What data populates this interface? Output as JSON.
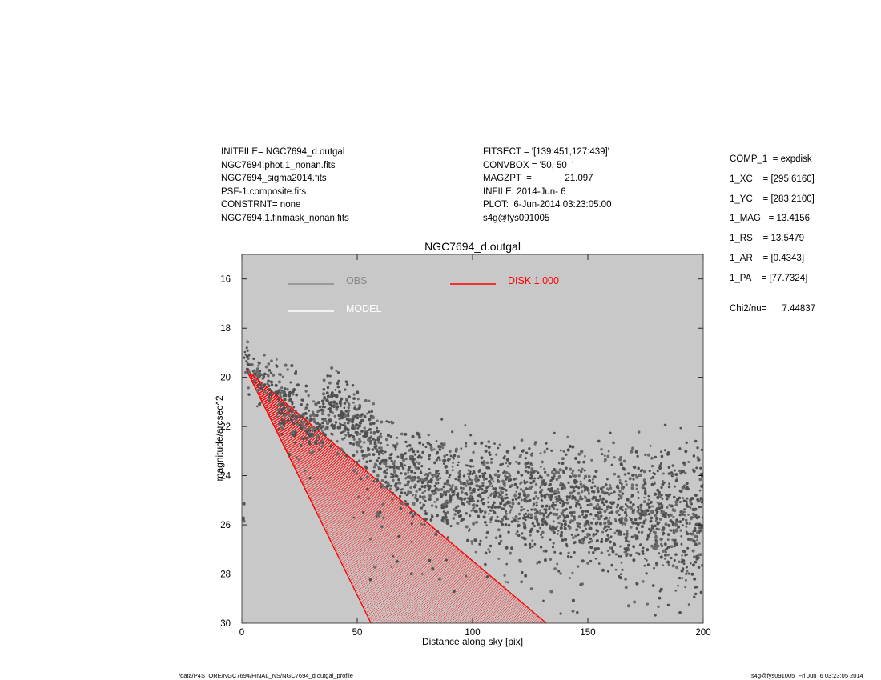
{
  "header_left": [
    "INITFILE= NGC7694_d.outgal",
    "NGC7694.phot.1_nonan.fits",
    "NGC7694_sigma2014.fits",
    "PSF-1.composite.fits",
    "CONSTRNT= none",
    "NGC7694.1.finmask_nonan.fits"
  ],
  "header_mid": [
    "FITSECT = '[139:451,127:439]'",
    "CONVBOX = '50, 50  '",
    "MAGZPT  =             21.097",
    "INFILE: 2014-Jun- 6",
    "PLOT:  6-Jun-2014 03:23:05.00",
    "s4g@fys091005"
  ],
  "components": [
    "COMP_1  = expdisk",
    "1_XC    = [295.6160]",
    "1_YC    = [283.2100]",
    "1_MAG   = 13.4156",
    "1_RS    = 13.5479",
    "1_AR    = [0.4343]",
    "1_PA    = [77.7324]"
  ],
  "chi2": "Chi2/nu=      7.44837",
  "footer_left": "/data/P4STORE/NGC7694/FINAL_NS/NGC7694_d.outgal_profile",
  "footer_right": "s4g@fys091005  Fri Jun  6 03:23:05 2014",
  "colors": {
    "plot_background": "#c8c8c8",
    "obs": "#505050",
    "obs_legend": "#8a8a8a",
    "model": "#ffffff",
    "disk": "#ff0000"
  },
  "chart_data": {
    "type": "scatter",
    "title": "NGC7694_d.outgal",
    "xlabel": "Distance along sky [pix]",
    "ylabel": "magnitude/arcsec^2",
    "xlim": [
      0,
      200
    ],
    "ylim": [
      30,
      15
    ],
    "y_inverted": true,
    "xticks": [
      0,
      50,
      100,
      150,
      200
    ],
    "yticks": [
      16,
      18,
      20,
      22,
      24,
      26,
      28,
      30
    ],
    "legend": [
      {
        "name": "OBS",
        "color": "#8a8a8a"
      },
      {
        "name": "MODEL",
        "color": "#ffffff"
      },
      {
        "name": "DISK  1.000",
        "color": "#ff0000"
      }
    ],
    "series": [
      {
        "name": "OBS",
        "kind": "points",
        "color": "#505050",
        "points": [
          [
            1,
            19.2
          ],
          [
            2,
            19.35
          ],
          [
            3,
            19.5
          ],
          [
            5,
            19.75
          ],
          [
            7,
            20.0
          ],
          [
            10,
            20.3
          ],
          [
            13,
            20.6
          ],
          [
            16,
            20.9
          ],
          [
            20,
            21.3
          ],
          [
            24,
            21.6
          ],
          [
            28,
            21.9
          ],
          [
            32,
            22.1
          ],
          [
            35,
            21.7
          ],
          [
            38,
            21.3
          ],
          [
            40,
            21.2
          ],
          [
            44,
            21.5
          ],
          [
            48,
            21.8
          ],
          [
            52,
            22.2
          ],
          [
            56,
            22.6
          ],
          [
            60,
            23.0
          ],
          [
            65,
            23.4
          ],
          [
            70,
            23.7
          ],
          [
            75,
            23.9
          ],
          [
            80,
            24.1
          ],
          [
            85,
            24.3
          ],
          [
            90,
            24.4
          ],
          [
            95,
            24.5
          ],
          [
            100,
            24.6
          ],
          [
            105,
            24.7
          ],
          [
            110,
            24.8
          ],
          [
            115,
            24.9
          ],
          [
            120,
            24.9
          ],
          [
            125,
            25.0
          ],
          [
            130,
            25.0
          ],
          [
            135,
            25.1
          ],
          [
            140,
            25.1
          ],
          [
            145,
            25.2
          ],
          [
            150,
            25.2
          ],
          [
            155,
            25.3
          ],
          [
            160,
            25.3
          ],
          [
            165,
            25.4
          ],
          [
            170,
            25.4
          ],
          [
            175,
            25.5
          ],
          [
            180,
            25.5
          ],
          [
            185,
            25.6
          ],
          [
            190,
            25.6
          ],
          [
            195,
            25.7
          ],
          [
            200,
            25.7
          ]
        ]
      },
      {
        "name": "DISK  1.000",
        "kind": "fan",
        "color": "#ff0000",
        "apex": [
          2,
          19.7
        ],
        "upper_edge_end": [
          132,
          30
        ],
        "lower_edge_end": [
          56,
          30
        ]
      }
    ]
  }
}
